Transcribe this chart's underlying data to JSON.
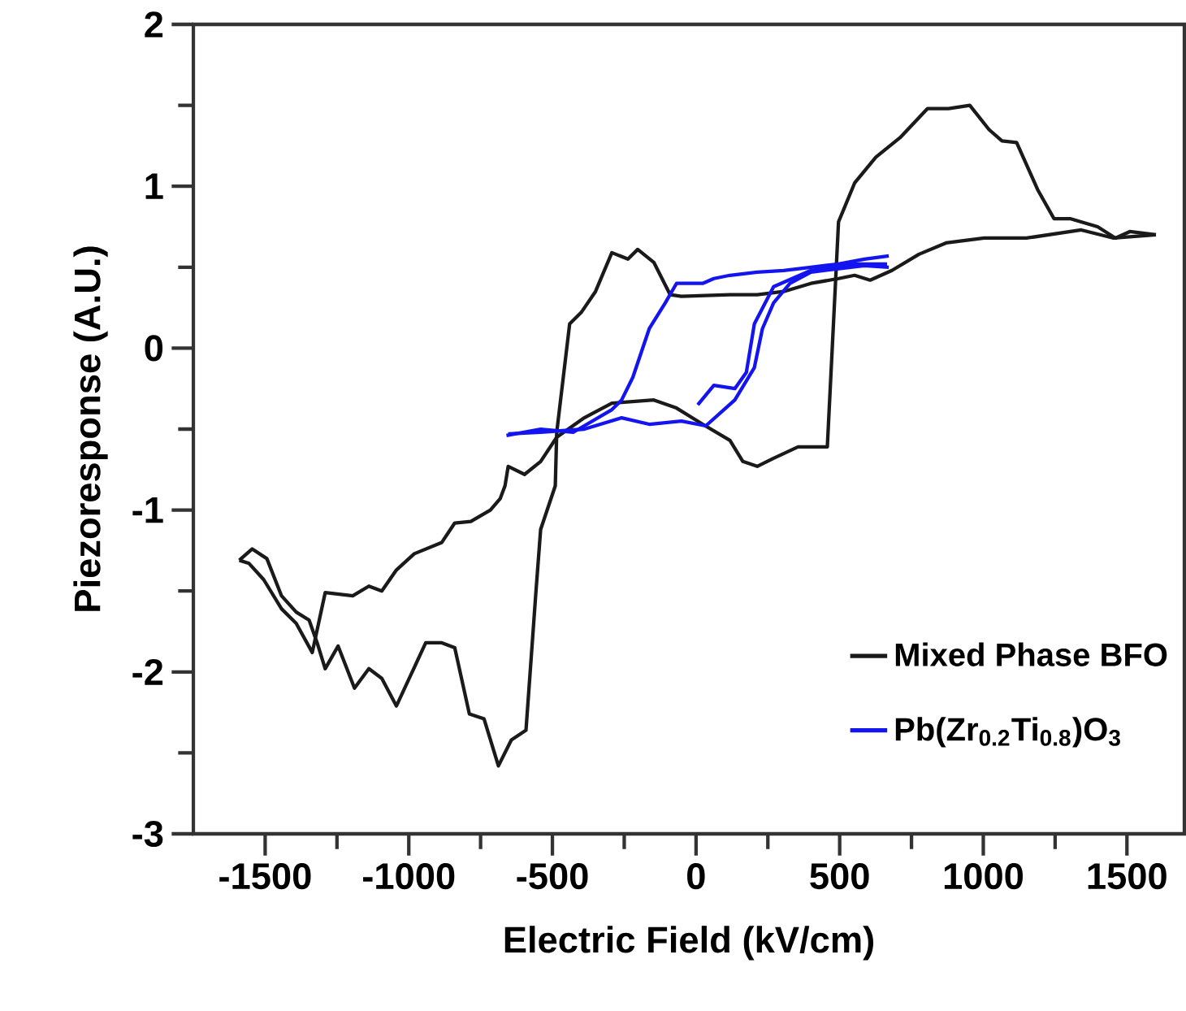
{
  "chart_data": {
    "type": "line",
    "xlabel": "Electric Field (kV/cm)",
    "ylabel": "Piezoresponse (A.U.)",
    "xlim": [
      -1750,
      1700
    ],
    "ylim": [
      -3,
      2
    ],
    "xticks": [
      -1500,
      {
        "value": -1250,
        "label": null
      },
      -1000,
      {
        "value": -750,
        "label": null
      },
      -500,
      {
        "value": -250,
        "label": null
      },
      0,
      {
        "value": 250,
        "label": null
      },
      500,
      {
        "value": 750,
        "label": null
      },
      1000,
      {
        "value": 1250,
        "label": null
      },
      1500
    ],
    "yticks": [
      -3,
      {
        "value": -2.5,
        "label": null
      },
      -2,
      {
        "value": -1.5,
        "label": null
      },
      -1,
      {
        "value": -0.5,
        "label": null
      },
      0,
      {
        "value": 0.5,
        "label": null
      },
      1,
      {
        "value": 1.5,
        "label": null
      },
      2
    ],
    "legend": "bottom right",
    "marker": "none",
    "line_style": "solid",
    "series": [
      {
        "name": "Mixed Phase BFO",
        "color": "#1a1a1a",
        "x": [
          -1590,
          -1545,
          -1494,
          -1443,
          -1392,
          -1347,
          -1319,
          -1291,
          -1246,
          -1189,
          -1139,
          -1094,
          -1043,
          -941,
          -885,
          -840,
          -789,
          -738,
          -688,
          -643,
          -592,
          -558,
          -541,
          -490,
          -485,
          -440,
          -400,
          -350,
          -293,
          -237,
          -203,
          -147,
          -90,
          -51,
          118,
          213,
          305,
          400,
          496,
          552,
          606,
          682,
          776,
          870,
          1003,
          1150,
          1341,
          1454,
          1601
        ],
        "values": [
          -1.31,
          -1.24,
          -1.3,
          -1.53,
          -1.63,
          -1.68,
          -1.82,
          -1.98,
          -1.84,
          -2.1,
          -1.98,
          -2.04,
          -2.21,
          -1.82,
          -1.82,
          -1.85,
          -2.26,
          -2.29,
          -2.58,
          -2.42,
          -2.36,
          -1.52,
          -1.12,
          -0.85,
          -0.52,
          0.15,
          0.22,
          0.35,
          0.59,
          0.55,
          0.61,
          0.53,
          0.33,
          0.32,
          0.33,
          0.33,
          0.35,
          0.4,
          0.43,
          0.45,
          0.42,
          0.48,
          0.58,
          0.65,
          0.68,
          0.68,
          0.73,
          0.68,
          0.7
        ]
      },
      {
        "color": "#1a1a1a",
        "x": [
          -1590,
          -1556,
          -1505,
          -1443,
          -1392,
          -1336,
          -1291,
          -1195,
          -1139,
          -1094,
          -1043,
          -981,
          -885,
          -840,
          -784,
          -716,
          -682,
          -665,
          -654,
          -597,
          -541,
          -485,
          -389,
          -293,
          -147,
          -68,
          23,
          118,
          163,
          213,
          270,
          355,
          457,
          496,
          552,
          626,
          710,
          806,
          879,
          953,
          1020,
          1065,
          1116,
          1189,
          1246,
          1302,
          1398,
          1460,
          1510,
          1601
        ],
        "values": [
          -1.31,
          -1.33,
          -1.43,
          -1.61,
          -1.7,
          -1.88,
          -1.51,
          -1.53,
          -1.47,
          -1.5,
          -1.37,
          -1.27,
          -1.2,
          -1.08,
          -1.07,
          -1.0,
          -0.93,
          -0.85,
          -0.73,
          -0.78,
          -0.7,
          -0.55,
          -0.43,
          -0.34,
          -0.32,
          -0.37,
          -0.47,
          -0.57,
          -0.7,
          -0.73,
          -0.68,
          -0.61,
          -0.61,
          0.78,
          1.02,
          1.18,
          1.3,
          1.48,
          1.48,
          1.5,
          1.35,
          1.28,
          1.27,
          0.98,
          0.8,
          0.8,
          0.75,
          0.68,
          0.72,
          0.7
        ]
      },
      {
        "name": "Pb(Zr$_{0.2}$Ti$_{0.8}$)O$_{3}$",
        "color": "#1414f0",
        "x": [
          -660,
          -541,
          -428,
          -293,
          -259,
          -220,
          -163,
          -107,
          -68,
          23,
          62,
          118,
          213,
          305,
          400,
          496,
          586,
          671
        ],
        "values": [
          -0.54,
          -0.5,
          -0.52,
          -0.38,
          -0.32,
          -0.18,
          0.12,
          0.28,
          0.4,
          0.4,
          0.43,
          0.45,
          0.47,
          0.48,
          0.5,
          0.52,
          0.55,
          0.57
        ]
      },
      {
        "color": "#1414f0",
        "x": [
          -654,
          -541,
          -389,
          -259,
          -163,
          -51,
          34,
          135,
          203,
          231,
          270,
          327,
          400,
          586,
          671
        ],
        "values": [
          -0.53,
          -0.52,
          -0.5,
          -0.43,
          -0.47,
          -0.45,
          -0.48,
          -0.32,
          -0.12,
          0.12,
          0.28,
          0.4,
          0.47,
          0.51,
          0.5
        ]
      },
      {
        "color": "#1414f0",
        "x": [
          6,
          62,
          135,
          175,
          203,
          270,
          400,
          552,
          665
        ],
        "values": [
          -0.35,
          -0.23,
          -0.25,
          -0.15,
          0.15,
          0.38,
          0.48,
          0.52,
          0.52
        ]
      }
    ]
  }
}
